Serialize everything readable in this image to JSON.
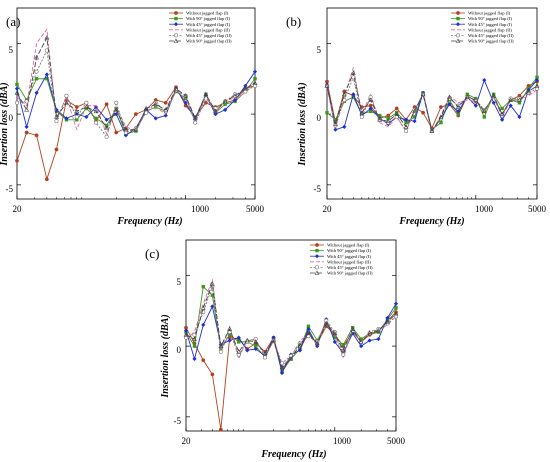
{
  "chart_data": [
    {
      "type": "line",
      "panel_label": "(a)",
      "xlabel": "Frequency (Hz)",
      "ylabel": "Insertion loss (dBA)",
      "xscale": "log",
      "xlim": [
        20,
        5000
      ],
      "ylim": [
        -6,
        7.5
      ],
      "x_ticks": [
        20,
        1000,
        5000
      ],
      "x_tick_labels": [
        "20",
        "1000",
        "5000"
      ],
      "y_ticks": [
        -5,
        0,
        5
      ],
      "y_tick_labels": [
        "-5",
        "0",
        "5"
      ],
      "legend_position": "top-right",
      "x": [
        20,
        25,
        31.5,
        40,
        50,
        63,
        80,
        100,
        125,
        160,
        200,
        250,
        315,
        400,
        500,
        630,
        800,
        1000,
        1250,
        1600,
        2000,
        2500,
        3150,
        4000,
        5000
      ],
      "series": [
        {
          "name": "Without jagged flap (I)",
          "color": "#b5401e",
          "marker": "filled-circle",
          "dash": "solid",
          "values": [
            -3.3,
            -1.3,
            -1.5,
            -4.6,
            -2.5,
            1.0,
            0.5,
            0.8,
            -0.5,
            0.7,
            -1.3,
            -1.0,
            0.0,
            0.3,
            1.0,
            0.8,
            1.9,
            0.6,
            -0.2,
            0.8,
            0.5,
            0.8,
            1.0,
            1.8,
            2.0
          ]
        },
        {
          "name": "With 90° jagged flap (I)",
          "color": "#3a9a1a",
          "marker": "filled-square",
          "dash": "solid",
          "values": [
            2.1,
            1.0,
            2.5,
            2.5,
            0.2,
            -0.4,
            -0.4,
            0.4,
            -0.3,
            -0.8,
            0.4,
            -1.4,
            -1.2,
            0.2,
            0.5,
            0.2,
            1.6,
            1.1,
            -0.3,
            1.4,
            0.1,
            0.7,
            0.9,
            1.6,
            2.5
          ]
        },
        {
          "name": "With 45° jagged flap (I)",
          "color": "#1e2fd1",
          "marker": "filled-diamond",
          "dash": "solid",
          "values": [
            1.8,
            -0.9,
            1.5,
            2.8,
            0.3,
            -0.3,
            0.0,
            -0.2,
            0.5,
            -0.4,
            0.0,
            -1.5,
            -1.0,
            0.3,
            -0.3,
            -0.1,
            1.8,
            0.8,
            -0.4,
            1.3,
            0.0,
            0.3,
            1.0,
            2.0,
            3.0
          ]
        },
        {
          "name": "Without jagged flap (II)",
          "color": "#d96ba6",
          "marker": "none",
          "dash": "4,2",
          "values": [
            1.2,
            0.6,
            5.0,
            6.0,
            -0.4,
            1.2,
            -1.1,
            0.6,
            0.6,
            -1.4,
            0.5,
            -0.9,
            -1.2,
            0.2,
            0.5,
            0.0,
            1.7,
            1.1,
            -0.5,
            1.3,
            0.1,
            1.0,
            1.1,
            1.5,
            2.3
          ]
        },
        {
          "name": "With 45° jagged flap (II)",
          "color": "#777777",
          "marker": "open-circle",
          "dash": "2,1.5",
          "values": [
            0.8,
            0.9,
            3.0,
            4.5,
            -0.5,
            1.3,
            -0.2,
            0.8,
            -0.6,
            -1.6,
            0.8,
            -1.3,
            -1.0,
            0.1,
            0.8,
            0.2,
            1.7,
            1.3,
            -0.6,
            1.1,
            0.4,
            0.9,
            1.4,
            1.6,
            2.0
          ]
        },
        {
          "name": "With 90° jagged flap (II)",
          "color": "#444444",
          "marker": "open-triangle",
          "dash": "5,2",
          "values": [
            1.5,
            0.3,
            4.0,
            5.4,
            -0.2,
            0.8,
            0.2,
            0.5,
            0.2,
            -1.0,
            0.3,
            -1.1,
            -1.1,
            0.4,
            0.7,
            0.3,
            1.8,
            1.3,
            -0.3,
            1.4,
            0.2,
            0.9,
            1.3,
            1.8,
            2.2
          ]
        }
      ]
    },
    {
      "type": "line",
      "panel_label": "(b)",
      "xlabel": "Frequency (Hz)",
      "ylabel": "Insertion loss (dBA)",
      "xscale": "log",
      "xlim": [
        20,
        5000
      ],
      "ylim": [
        -6,
        7.5
      ],
      "x_ticks": [
        20,
        1000,
        5000
      ],
      "x_tick_labels": [
        "20",
        "1000",
        "5000"
      ],
      "y_ticks": [
        -5,
        0,
        5
      ],
      "y_tick_labels": [
        "-5",
        "0",
        "5"
      ],
      "legend_position": "top-right",
      "x": [
        20,
        25,
        31.5,
        40,
        50,
        63,
        80,
        100,
        125,
        160,
        200,
        250,
        315,
        400,
        500,
        630,
        800,
        1000,
        1250,
        1600,
        2000,
        2500,
        3150,
        4000,
        5000
      ],
      "series": [
        {
          "name": "Without jagged flap (I)",
          "color": "#b5401e",
          "marker": "filled-circle",
          "dash": "solid",
          "values": [
            2.3,
            -0.6,
            1.6,
            1.3,
            0.5,
            0.6,
            -0.3,
            -0.1,
            0.4,
            -0.4,
            0.5,
            0.1,
            -1.0,
            0.5,
            0.7,
            -0.1,
            1.3,
            0.9,
            0.2,
            1.2,
            0.0,
            1.0,
            1.3,
            2.0,
            2.3
          ]
        },
        {
          "name": "With 90° jagged flap (I)",
          "color": "#3a9a1a",
          "marker": "filled-square",
          "dash": "solid",
          "values": [
            0.1,
            -0.4,
            0.9,
            1.2,
            0.0,
            0.2,
            -0.1,
            -0.3,
            0.1,
            -0.6,
            -0.2,
            1.5,
            -1.1,
            -0.6,
            1.0,
            0.0,
            1.4,
            1.1,
            -0.2,
            1.4,
            0.4,
            1.0,
            0.8,
            1.8,
            2.6
          ]
        },
        {
          "name": "With 45° jagged flap (I)",
          "color": "#1e2fd1",
          "marker": "filled-diamond",
          "dash": "solid",
          "values": [
            2.1,
            -1.1,
            -0.9,
            1.4,
            -0.1,
            0.4,
            -0.3,
            -0.7,
            -0.2,
            -0.4,
            -0.5,
            1.5,
            -1.2,
            -0.3,
            0.7,
            0.2,
            1.2,
            0.6,
            2.4,
            0.8,
            -0.4,
            0.6,
            -0.2,
            1.7,
            2.4
          ]
        },
        {
          "name": "Without jagged flap (II)",
          "color": "#d96ba6",
          "marker": "none",
          "dash": "4,2",
          "values": [
            1.9,
            -1.0,
            1.2,
            3.3,
            0.0,
            1.4,
            -0.6,
            -0.9,
            -0.2,
            -1.2,
            0.2,
            1.5,
            -1.3,
            -0.1,
            1.3,
            0.8,
            1.0,
            0.9,
            0.2,
            1.2,
            -0.2,
            1.0,
            1.0,
            1.3,
            1.7
          ]
        },
        {
          "name": "With 45° jagged flap (II)",
          "color": "#777777",
          "marker": "open-circle",
          "dash": "2,1.5",
          "values": [
            2.0,
            -0.8,
            1.0,
            2.6,
            -0.2,
            1.2,
            -0.4,
            -0.6,
            -0.2,
            -1.2,
            0.3,
            1.4,
            -1.2,
            -0.3,
            1.1,
            0.6,
            1.2,
            1.0,
            0.3,
            1.2,
            -0.1,
            1.1,
            1.1,
            1.5,
            1.8
          ]
        },
        {
          "name": "With 90° jagged flap (II)",
          "color": "#444444",
          "marker": "open-triangle",
          "dash": "5,2",
          "values": [
            2.0,
            -0.7,
            1.4,
            2.9,
            0.1,
            1.0,
            -0.4,
            -0.5,
            0.0,
            -0.9,
            0.2,
            1.4,
            -1.2,
            -0.2,
            1.2,
            0.5,
            1.2,
            1.0,
            0.2,
            1.3,
            0.0,
            1.0,
            1.0,
            1.6,
            2.0
          ]
        }
      ]
    },
    {
      "type": "line",
      "panel_label": "(c)",
      "xlabel": "Frequency (Hz)",
      "ylabel": "Insertion loss (dBA)",
      "xscale": "log",
      "xlim": [
        20,
        5000
      ],
      "ylim": [
        -6,
        7.5
      ],
      "x_ticks": [
        20,
        1000,
        5000
      ],
      "x_tick_labels": [
        "20",
        "1000",
        "5000"
      ],
      "y_ticks": [
        -5,
        0,
        5
      ],
      "y_tick_labels": [
        "-5",
        "0",
        "5"
      ],
      "legend_position": "top-right",
      "x": [
        20,
        25,
        31.5,
        40,
        50,
        63,
        80,
        100,
        125,
        160,
        200,
        250,
        315,
        400,
        500,
        630,
        800,
        1000,
        1250,
        1600,
        2000,
        2500,
        3150,
        4000,
        5000
      ],
      "series": [
        {
          "name": "Without jagged flap (I)",
          "color": "#b5401e",
          "marker": "filled-circle",
          "dash": "solid",
          "values": [
            1.3,
            0.2,
            -1.0,
            -2.0,
            -5.9,
            0.6,
            0.5,
            -0.2,
            0.2,
            -0.4,
            0.6,
            -1.6,
            -0.9,
            -0.2,
            0.9,
            0.2,
            1.4,
            0.8,
            0.0,
            1.0,
            0.3,
            0.8,
            1.0,
            1.8,
            2.4
          ]
        },
        {
          "name": "With 90° jagged flap (I)",
          "color": "#3a9a1a",
          "marker": "filled-square",
          "dash": "solid",
          "values": [
            1.0,
            0.0,
            4.2,
            3.6,
            -0.2,
            0.8,
            0.3,
            0.3,
            0.0,
            -0.8,
            0.5,
            -1.8,
            -0.9,
            -0.2,
            1.4,
            0.4,
            1.6,
            0.6,
            0.1,
            1.3,
            0.5,
            0.9,
            1.0,
            1.9,
            2.7
          ]
        },
        {
          "name": "With 45° jagged flap (I)",
          "color": "#1e2fd1",
          "marker": "filled-diamond",
          "dash": "solid",
          "values": [
            1.1,
            -0.9,
            1.5,
            2.8,
            0.1,
            0.4,
            0.6,
            -0.3,
            -0.2,
            -0.7,
            0.6,
            -1.9,
            -0.6,
            -0.3,
            1.2,
            0.0,
            1.9,
            0.3,
            -0.5,
            0.9,
            0.0,
            0.4,
            0.5,
            2.0,
            3.0
          ]
        },
        {
          "name": "Without jagged flap (II)",
          "color": "#d96ba6",
          "marker": "none",
          "dash": "4,2",
          "values": [
            0.5,
            1.0,
            3.0,
            4.7,
            -0.3,
            1.4,
            -0.9,
            0.5,
            0.4,
            -0.6,
            0.3,
            -1.4,
            -0.8,
            0.4,
            0.8,
            0.1,
            1.7,
            0.8,
            -0.8,
            1.2,
            0.2,
            1.1,
            1.1,
            1.5,
            2.1
          ]
        },
        {
          "name": "With 45° jagged flap (II)",
          "color": "#777777",
          "marker": "open-circle",
          "dash": "2,1.5",
          "values": [
            0.6,
            0.8,
            2.4,
            4.2,
            -0.4,
            1.0,
            -0.6,
            0.3,
            0.5,
            -0.8,
            0.4,
            -1.2,
            -0.7,
            0.2,
            0.7,
            0.3,
            1.8,
            1.0,
            -0.6,
            1.1,
            0.3,
            0.9,
            1.2,
            1.6,
            2.1
          ]
        },
        {
          "name": "With 90° jagged flap (II)",
          "color": "#444444",
          "marker": "open-triangle",
          "dash": "5,2",
          "values": [
            0.8,
            0.5,
            2.7,
            4.4,
            0.0,
            1.2,
            -0.4,
            0.4,
            0.3,
            -0.5,
            0.4,
            -1.5,
            -0.9,
            0.1,
            0.9,
            0.2,
            1.6,
            0.9,
            -0.3,
            1.2,
            0.3,
            0.9,
            1.1,
            1.7,
            2.3
          ]
        }
      ]
    }
  ]
}
